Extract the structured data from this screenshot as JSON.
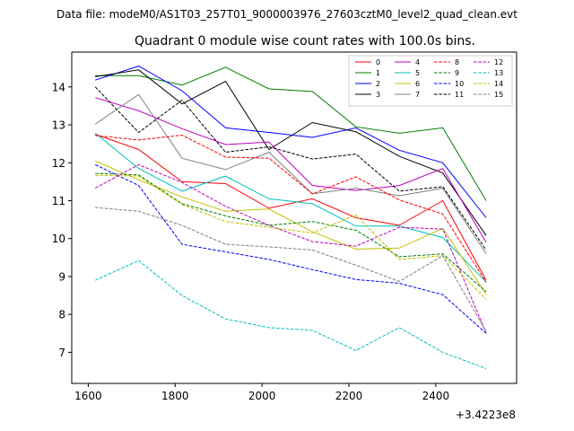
{
  "header_text": "Data file: modeM0/AS1T03_257T01_9000003976_27603cztM0_level2_quad_clean.evt",
  "chart_data": {
    "type": "line",
    "title": "Quadrant 0 module wise count rates with 100.0s bins.",
    "xlabel": "",
    "ylabel": "",
    "x_offset_label": "+3.4223e8",
    "xlim": [
      1562,
      2586
    ],
    "ylim": [
      6.18,
      14.92
    ],
    "x_ticks": [
      1600,
      1800,
      2000,
      2200,
      2400
    ],
    "y_ticks": [
      7,
      8,
      9,
      10,
      11,
      12,
      13,
      14
    ],
    "legend_position": "top-right",
    "x": [
      1616,
      1716,
      1816,
      1916,
      2016,
      2116,
      2216,
      2316,
      2416,
      2516
    ],
    "series": [
      {
        "name": "0",
        "color": "#ff0000",
        "dash": "solid",
        "values": [
          12.75,
          12.35,
          11.5,
          11.45,
          10.8,
          11.05,
          10.55,
          10.35,
          11.0,
          8.9
        ]
      },
      {
        "name": "1",
        "color": "#008000",
        "dash": "solid",
        "values": [
          14.3,
          14.3,
          14.05,
          14.52,
          13.95,
          13.88,
          12.95,
          12.78,
          12.92,
          11.0
        ]
      },
      {
        "name": "2",
        "color": "#0000ff",
        "dash": "solid",
        "values": [
          14.18,
          14.55,
          13.9,
          12.92,
          12.8,
          12.67,
          12.92,
          12.33,
          12.0,
          10.55
        ]
      },
      {
        "name": "3",
        "color": "#000000",
        "dash": "solid",
        "values": [
          14.27,
          14.45,
          13.55,
          14.15,
          12.35,
          13.06,
          12.82,
          12.17,
          11.73,
          10.08
        ]
      },
      {
        "name": "4",
        "color": "#bf00bf",
        "dash": "solid",
        "values": [
          13.72,
          13.37,
          12.9,
          12.48,
          12.55,
          11.4,
          11.27,
          11.4,
          11.85,
          9.9
        ]
      },
      {
        "name": "5",
        "color": "#00bfbf",
        "dash": "solid",
        "values": [
          12.78,
          11.85,
          11.25,
          11.65,
          11.05,
          10.92,
          10.33,
          10.33,
          10.03,
          8.85
        ]
      },
      {
        "name": "6",
        "color": "#bfbf00",
        "dash": "solid",
        "values": [
          12.05,
          11.55,
          11.1,
          10.72,
          10.78,
          10.18,
          9.72,
          9.75,
          10.27,
          8.53
        ]
      },
      {
        "name": "7",
        "color": "#808080",
        "dash": "solid",
        "values": [
          13.02,
          13.8,
          12.12,
          11.82,
          12.28,
          11.18,
          11.33,
          11.13,
          11.33,
          9.6
        ]
      },
      {
        "name": "8",
        "color": "#ff0000",
        "dash": "dashed",
        "values": [
          12.72,
          12.6,
          12.73,
          12.15,
          12.12,
          11.18,
          11.63,
          11.02,
          10.65,
          8.85
        ]
      },
      {
        "name": "9",
        "color": "#008000",
        "dash": "dashed",
        "values": [
          11.72,
          11.68,
          10.92,
          10.6,
          10.35,
          10.45,
          10.22,
          9.52,
          9.6,
          8.6
        ]
      },
      {
        "name": "10",
        "color": "#0000ff",
        "dash": "dashed",
        "values": [
          11.95,
          11.4,
          9.85,
          9.65,
          9.45,
          9.18,
          8.92,
          8.82,
          8.52,
          7.5
        ]
      },
      {
        "name": "11",
        "color": "#000000",
        "dash": "dashed",
        "values": [
          14.0,
          12.8,
          13.65,
          12.28,
          12.42,
          12.1,
          12.23,
          11.25,
          11.37,
          9.7
        ]
      },
      {
        "name": "12",
        "color": "#bf00bf",
        "dash": "dashed",
        "values": [
          11.33,
          11.95,
          11.48,
          10.85,
          10.35,
          9.92,
          9.8,
          10.3,
          10.25,
          7.5
        ]
      },
      {
        "name": "13",
        "color": "#00bfbf",
        "dash": "dashed",
        "values": [
          8.9,
          9.42,
          8.5,
          7.88,
          7.65,
          7.58,
          7.05,
          7.65,
          7.0,
          6.57
        ]
      },
      {
        "name": "14",
        "color": "#bfbf00",
        "dash": "dashed",
        "values": [
          11.67,
          11.65,
          10.9,
          10.45,
          10.3,
          10.15,
          10.62,
          9.45,
          9.55,
          8.4
        ]
      },
      {
        "name": "15",
        "color": "#808080",
        "dash": "dashed",
        "values": [
          10.82,
          10.72,
          10.35,
          9.85,
          9.78,
          9.7,
          9.3,
          8.87,
          9.55,
          7.55
        ]
      }
    ]
  }
}
